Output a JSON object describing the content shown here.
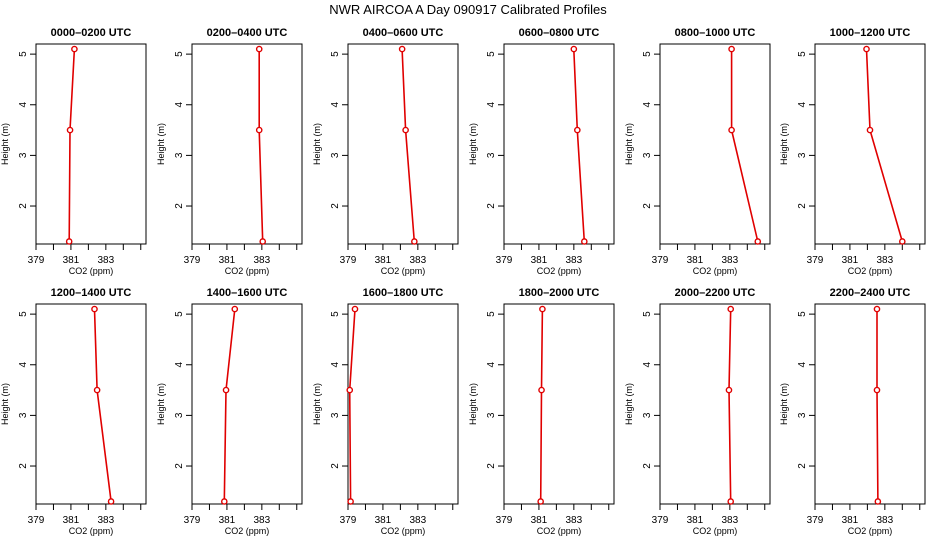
{
  "title": "NWR AIRCOA A  Day 090917  Calibrated Profiles",
  "colors": {
    "series": "#e00000",
    "axis": "#000000"
  },
  "chart_data": [
    {
      "type": "line",
      "title": "0000–0200 UTC",
      "xlabel": "CO2 (ppm)",
      "ylabel": "Height (m)",
      "xlim": [
        379,
        385.3
      ],
      "ylim": [
        1.25,
        5.2
      ],
      "xticks": [
        "379",
        "381",
        "383"
      ],
      "yticks": [
        "2",
        "3",
        "4",
        "5"
      ],
      "series": [
        {
          "x": [
            380.9,
            380.95,
            381.2
          ],
          "y": [
            1.3,
            3.5,
            5.1
          ]
        }
      ]
    },
    {
      "type": "line",
      "title": "0200–0400 UTC",
      "xlabel": "CO2 (ppm)",
      "ylabel": "Height (m)",
      "xlim": [
        379,
        385.3
      ],
      "ylim": [
        1.25,
        5.2
      ],
      "xticks": [
        "379",
        "381",
        "383"
      ],
      "yticks": [
        "2",
        "3",
        "4",
        "5"
      ],
      "series": [
        {
          "x": [
            383.05,
            382.85,
            382.85
          ],
          "y": [
            1.3,
            3.5,
            5.1
          ]
        }
      ]
    },
    {
      "type": "line",
      "title": "0400–0600 UTC",
      "xlabel": "CO2 (ppm)",
      "ylabel": "Height (m)",
      "xlim": [
        379,
        385.3
      ],
      "ylim": [
        1.25,
        5.2
      ],
      "xticks": [
        "379",
        "381",
        "383"
      ],
      "yticks": [
        "2",
        "3",
        "4",
        "5"
      ],
      "series": [
        {
          "x": [
            382.8,
            382.3,
            382.1
          ],
          "y": [
            1.3,
            3.5,
            5.1
          ]
        }
      ]
    },
    {
      "type": "line",
      "title": "0600–0800 UTC",
      "xlabel": "CO2 (ppm)",
      "ylabel": "Height (m)",
      "xlim": [
        379,
        385.3
      ],
      "ylim": [
        1.25,
        5.2
      ],
      "xticks": [
        "379",
        "381",
        "383"
      ],
      "yticks": [
        "2",
        "3",
        "4",
        "5"
      ],
      "series": [
        {
          "x": [
            383.6,
            383.2,
            383.0
          ],
          "y": [
            1.3,
            3.5,
            5.1
          ]
        }
      ]
    },
    {
      "type": "line",
      "title": "0800–1000 UTC",
      "xlabel": "CO2 (ppm)",
      "ylabel": "Height (m)",
      "xlim": [
        379,
        385.3
      ],
      "ylim": [
        1.25,
        5.2
      ],
      "xticks": [
        "379",
        "381",
        "383"
      ],
      "yticks": [
        "2",
        "3",
        "4",
        "5"
      ],
      "series": [
        {
          "x": [
            384.6,
            383.1,
            383.1
          ],
          "y": [
            1.3,
            3.5,
            5.1
          ]
        }
      ]
    },
    {
      "type": "line",
      "title": "1000–1200 UTC",
      "xlabel": "CO2 (ppm)",
      "ylabel": "Height (m)",
      "xlim": [
        379,
        385.3
      ],
      "ylim": [
        1.25,
        5.2
      ],
      "xticks": [
        "379",
        "381",
        "383"
      ],
      "yticks": [
        "2",
        "3",
        "4",
        "5"
      ],
      "series": [
        {
          "x": [
            384.0,
            382.15,
            381.95
          ],
          "y": [
            1.3,
            3.5,
            5.1
          ]
        }
      ]
    },
    {
      "type": "line",
      "title": "1200–1400 UTC",
      "xlabel": "CO2 (ppm)",
      "ylabel": "Height (m)",
      "xlim": [
        379,
        385.3
      ],
      "ylim": [
        1.25,
        5.2
      ],
      "xticks": [
        "379",
        "381",
        "383"
      ],
      "yticks": [
        "2",
        "3",
        "4",
        "5"
      ],
      "series": [
        {
          "x": [
            383.3,
            382.5,
            382.35
          ],
          "y": [
            1.3,
            3.5,
            5.1
          ]
        }
      ]
    },
    {
      "type": "line",
      "title": "1400–1600 UTC",
      "xlabel": "CO2 (ppm)",
      "ylabel": "Height (m)",
      "xlim": [
        379,
        385.3
      ],
      "ylim": [
        1.25,
        5.2
      ],
      "xticks": [
        "379",
        "381",
        "383"
      ],
      "yticks": [
        "2",
        "3",
        "4",
        "5"
      ],
      "series": [
        {
          "x": [
            380.85,
            380.95,
            381.45
          ],
          "y": [
            1.3,
            3.5,
            5.1
          ]
        }
      ]
    },
    {
      "type": "line",
      "title": "1600–1800 UTC",
      "xlabel": "CO2 (ppm)",
      "ylabel": "Height (m)",
      "xlim": [
        379,
        385.3
      ],
      "ylim": [
        1.25,
        5.2
      ],
      "xticks": [
        "379",
        "381",
        "383"
      ],
      "yticks": [
        "2",
        "3",
        "4",
        "5"
      ],
      "series": [
        {
          "x": [
            379.15,
            379.1,
            379.4
          ],
          "y": [
            1.3,
            3.5,
            5.1
          ]
        }
      ]
    },
    {
      "type": "line",
      "title": "1800–2000 UTC",
      "xlabel": "CO2 (ppm)",
      "ylabel": "Height (m)",
      "xlim": [
        379,
        385.3
      ],
      "ylim": [
        1.25,
        5.2
      ],
      "xticks": [
        "379",
        "381",
        "383"
      ],
      "yticks": [
        "2",
        "3",
        "4",
        "5"
      ],
      "series": [
        {
          "x": [
            381.1,
            381.15,
            381.2
          ],
          "y": [
            1.3,
            3.5,
            5.1
          ]
        }
      ]
    },
    {
      "type": "line",
      "title": "2000–2200 UTC",
      "xlabel": "CO2 (ppm)",
      "ylabel": "Height (m)",
      "xlim": [
        379,
        385.3
      ],
      "ylim": [
        1.25,
        5.2
      ],
      "xticks": [
        "379",
        "381",
        "383"
      ],
      "yticks": [
        "2",
        "3",
        "4",
        "5"
      ],
      "series": [
        {
          "x": [
            383.05,
            382.95,
            383.05
          ],
          "y": [
            1.3,
            3.5,
            5.1
          ]
        }
      ]
    },
    {
      "type": "line",
      "title": "2200–2400 UTC",
      "xlabel": "CO2 (ppm)",
      "ylabel": "Height (m)",
      "xlim": [
        379,
        385.3
      ],
      "ylim": [
        1.25,
        5.2
      ],
      "xticks": [
        "379",
        "381",
        "383"
      ],
      "yticks": [
        "2",
        "3",
        "4",
        "5"
      ],
      "series": [
        {
          "x": [
            382.6,
            382.55,
            382.55
          ],
          "y": [
            1.3,
            3.5,
            5.1
          ]
        }
      ]
    }
  ]
}
